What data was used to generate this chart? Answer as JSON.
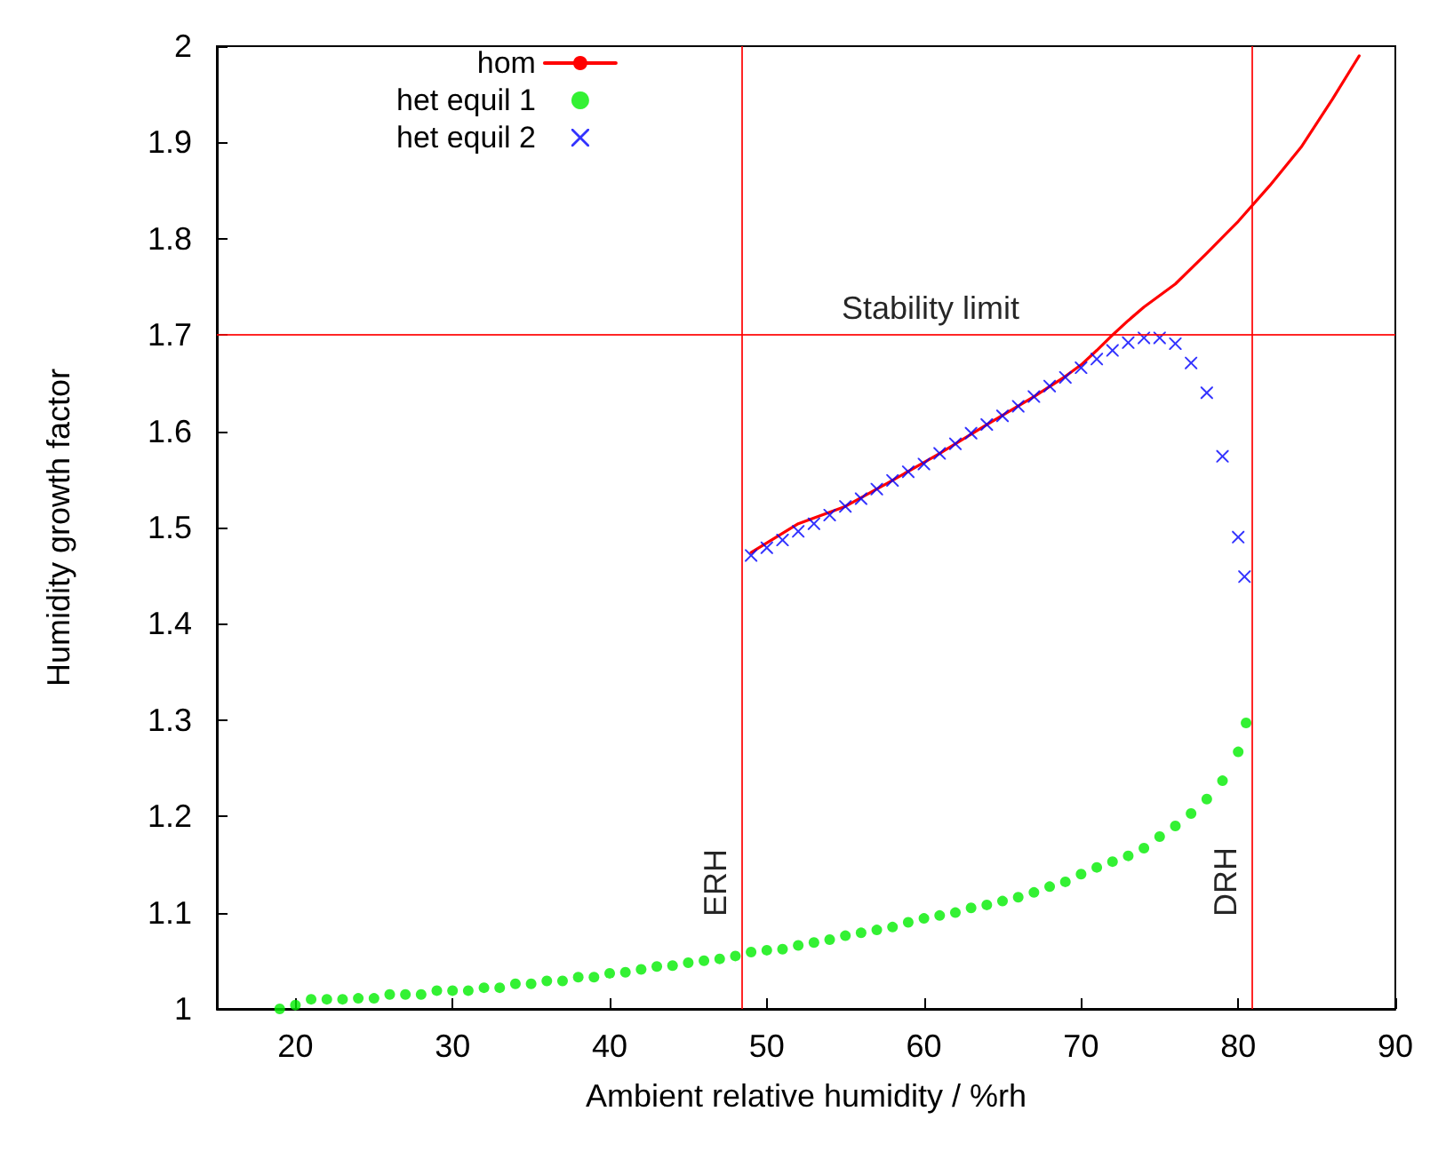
{
  "chart_data": {
    "type": "scatter",
    "xlabel": "Ambient relative humidity / %rh",
    "ylabel": "Humidity growth factor",
    "xlim": [
      15,
      90
    ],
    "xticks": [
      20,
      30,
      40,
      50,
      60,
      70,
      80,
      90
    ],
    "ylim": [
      1,
      2
    ],
    "yticks": [
      1,
      1.1,
      1.2,
      1.3,
      1.4,
      1.5,
      1.6,
      1.7,
      1.8,
      1.9,
      2
    ],
    "grid": false,
    "legend": "top left",
    "ref_lines": [
      {
        "axis": "y",
        "value": 1.7,
        "label": "Stability limit",
        "color": "#ff0000"
      },
      {
        "axis": "x",
        "value": 48.4,
        "label": "ERH",
        "color": "#ff0000"
      },
      {
        "axis": "x",
        "value": 80.9,
        "label": "DRH",
        "color": "#ff0000"
      }
    ],
    "series": [
      {
        "name": "hom",
        "type": "line",
        "marker": "none",
        "line_style": "solid",
        "color": "#ff0000",
        "x": [
          49,
          52,
          55,
          58,
          61,
          64,
          67,
          69,
          70,
          71,
          72,
          73,
          74,
          75,
          76,
          78,
          80,
          82,
          84,
          86,
          87.7
        ],
        "values": [
          1.474,
          1.504,
          1.522,
          1.549,
          1.577,
          1.607,
          1.636,
          1.657,
          1.669,
          1.684,
          1.7,
          1.715,
          1.729,
          1.741,
          1.753,
          1.785,
          1.818,
          1.855,
          1.895,
          1.945,
          1.99
        ]
      },
      {
        "name": "het equil 1",
        "marker": "circle",
        "color": "#00ee00",
        "x": [
          19,
          20,
          21,
          22,
          23,
          24,
          25,
          26,
          27,
          28,
          29,
          30,
          31,
          32,
          33,
          34,
          35,
          36,
          37,
          38,
          39,
          40,
          41,
          42,
          43,
          44,
          45,
          46,
          47,
          48,
          49,
          50,
          51,
          52,
          53,
          54,
          55,
          56,
          57,
          58,
          59,
          60,
          61,
          62,
          63,
          64,
          65,
          66,
          67,
          68,
          69,
          70,
          71,
          72,
          73,
          74,
          75,
          76,
          77,
          78,
          79,
          80,
          80.5
        ],
        "values": [
          1.0,
          1.004,
          1.01,
          1.01,
          1.01,
          1.011,
          1.011,
          1.015,
          1.015,
          1.015,
          1.019,
          1.019,
          1.019,
          1.022,
          1.022,
          1.026,
          1.026,
          1.029,
          1.029,
          1.033,
          1.033,
          1.037,
          1.038,
          1.041,
          1.044,
          1.045,
          1.048,
          1.05,
          1.052,
          1.055,
          1.059,
          1.061,
          1.062,
          1.066,
          1.069,
          1.072,
          1.076,
          1.079,
          1.082,
          1.085,
          1.09,
          1.094,
          1.097,
          1.1,
          1.105,
          1.108,
          1.112,
          1.116,
          1.121,
          1.127,
          1.132,
          1.14,
          1.147,
          1.153,
          1.159,
          1.167,
          1.179,
          1.19,
          1.203,
          1.218,
          1.237,
          1.267,
          1.297
        ]
      },
      {
        "name": "het equil 2",
        "marker": "cross",
        "color": "#0000ff",
        "x": [
          49,
          50,
          51,
          52,
          53,
          54,
          55,
          56,
          57,
          58,
          59,
          60,
          61,
          62,
          63,
          64,
          65,
          66,
          67,
          68,
          69,
          70,
          71,
          72,
          73,
          74,
          75,
          76,
          77,
          78,
          79,
          80,
          80.4
        ],
        "values": [
          1.471,
          1.479,
          1.487,
          1.496,
          1.504,
          1.513,
          1.522,
          1.53,
          1.54,
          1.549,
          1.558,
          1.566,
          1.577,
          1.587,
          1.598,
          1.607,
          1.616,
          1.626,
          1.636,
          1.647,
          1.656,
          1.666,
          1.675,
          1.684,
          1.692,
          1.697,
          1.697,
          1.691,
          1.671,
          1.64,
          1.574,
          1.49,
          1.449
        ]
      }
    ]
  }
}
